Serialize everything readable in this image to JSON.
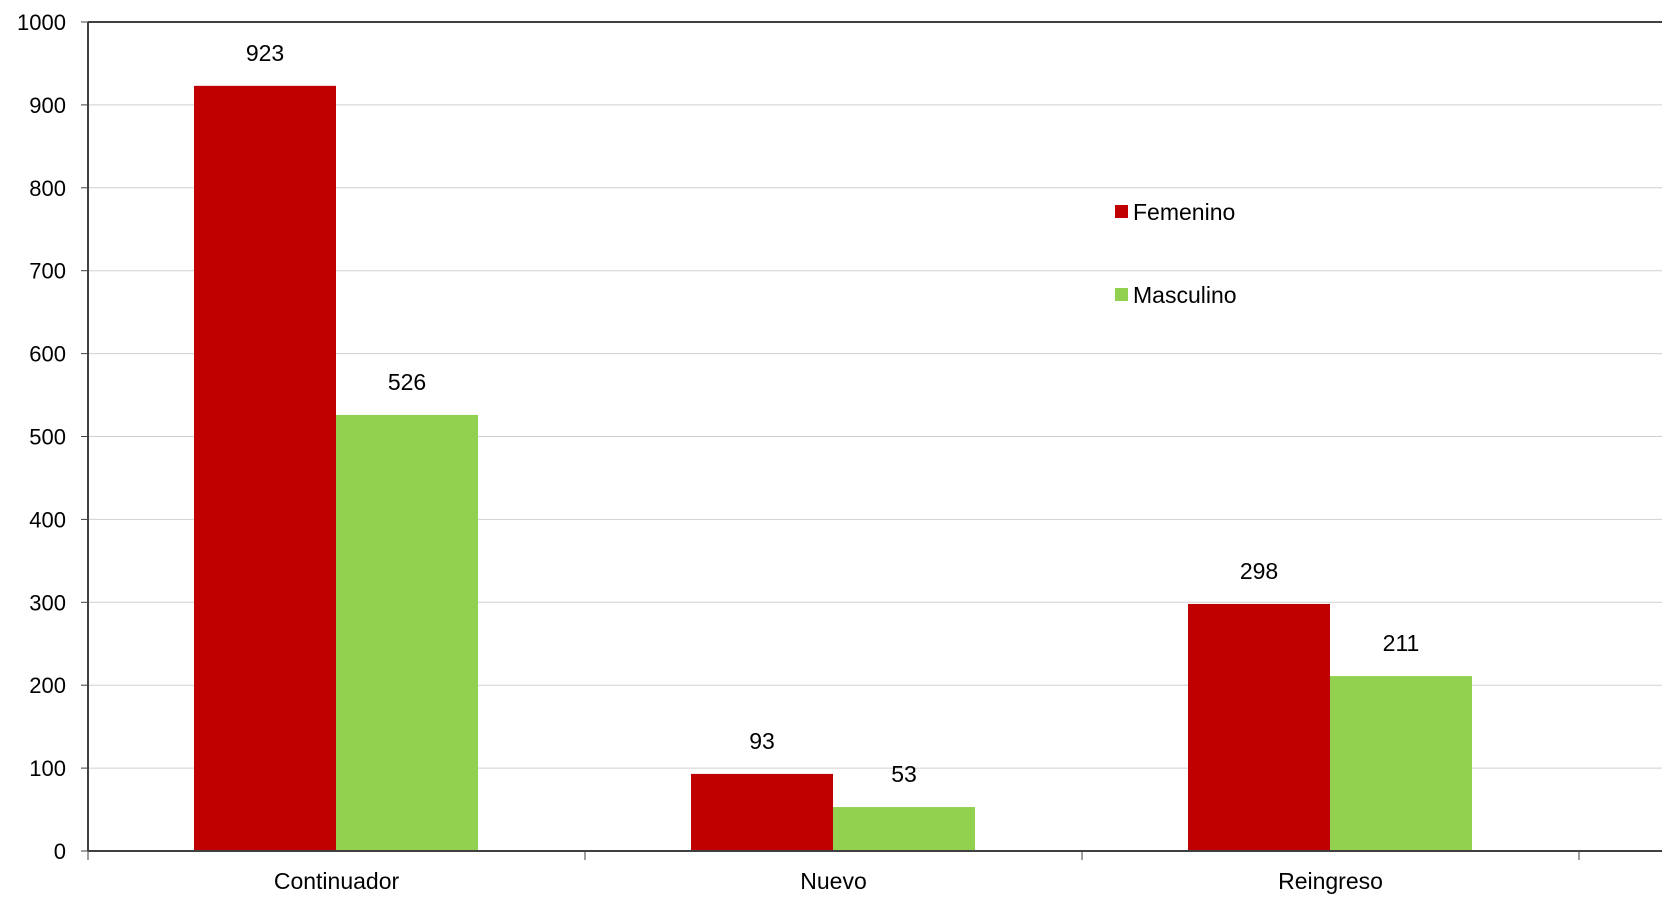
{
  "chart_data": {
    "type": "bar",
    "categories": [
      "Continuador",
      "Nuevo",
      "Reingreso"
    ],
    "series": [
      {
        "name": "Femenino",
        "values": [
          923,
          93,
          298
        ],
        "color": "#c00000"
      },
      {
        "name": "Masculino",
        "values": [
          526,
          53,
          211
        ],
        "color": "#92d050"
      }
    ],
    "ylim": [
      0,
      1000
    ],
    "yticks": [
      "0",
      "100",
      "200",
      "300",
      "400",
      "500",
      "600",
      "700",
      "800",
      "900",
      "1000"
    ],
    "grid": true,
    "legend_position": "top-right",
    "data_labels": true,
    "title": "",
    "xlabel": "",
    "ylabel": ""
  }
}
